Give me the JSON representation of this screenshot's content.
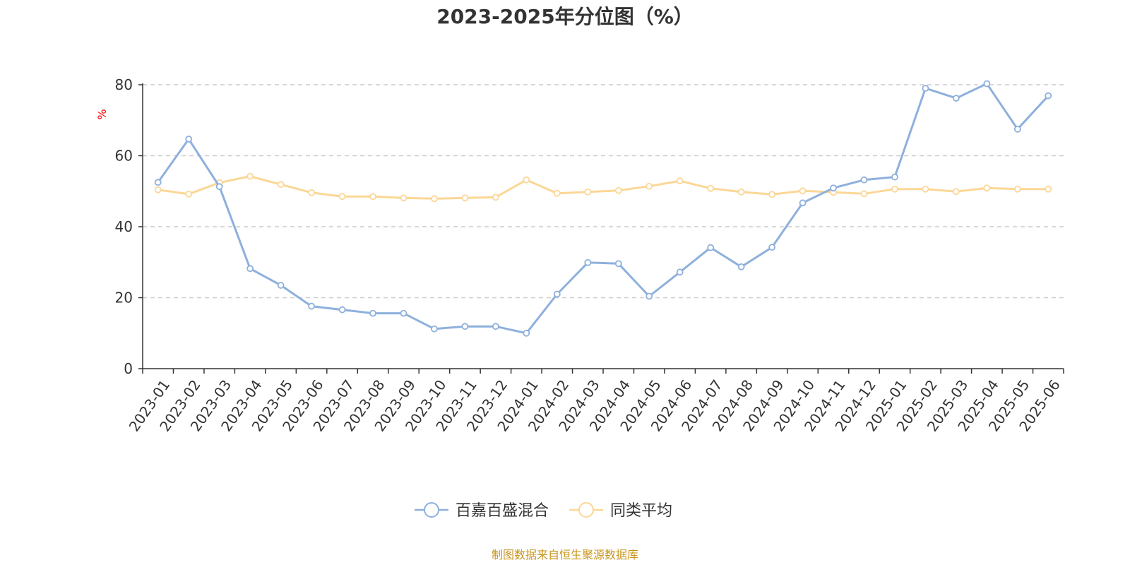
{
  "chart_data": {
    "type": "line",
    "title": "2023-2025年分位图（%）",
    "ylabel": "%",
    "ylim": [
      0,
      80
    ],
    "yticks": [
      0,
      20,
      40,
      60,
      80
    ],
    "grid": "horizontal-dashed",
    "legend_placement": "bottom-center",
    "categories": [
      "2023-01",
      "2023-02",
      "2023-03",
      "2023-04",
      "2023-05",
      "2023-06",
      "2023-07",
      "2023-08",
      "2023-09",
      "2023-10",
      "2023-11",
      "2023-12",
      "2024-01",
      "2024-02",
      "2024-03",
      "2024-04",
      "2024-05",
      "2024-06",
      "2024-07",
      "2024-08",
      "2024-09",
      "2024-10",
      "2024-11",
      "2024-12",
      "2025-01",
      "2025-02",
      "2025-03",
      "2025-04",
      "2025-05",
      "2025-06"
    ],
    "series": [
      {
        "name": "百嘉百盛混合",
        "color": "#8eb0dc",
        "values": [
          52.5,
          64.7,
          51.3,
          28.2,
          23.5,
          17.6,
          16.6,
          15.6,
          15.6,
          11.2,
          11.9,
          11.9,
          10.0,
          21.0,
          29.9,
          29.6,
          20.4,
          27.2,
          34.1,
          28.7,
          34.2,
          46.7,
          50.9,
          53.2,
          54.0,
          79.0,
          76.2,
          80.3,
          67.5,
          76.9
        ]
      },
      {
        "name": "同类平均",
        "color": "#fbd796",
        "values": [
          50.4,
          49.2,
          52.4,
          54.2,
          51.9,
          49.6,
          48.5,
          48.5,
          48.1,
          47.9,
          48.1,
          48.3,
          53.2,
          49.4,
          49.8,
          50.2,
          51.4,
          52.9,
          50.8,
          49.8,
          49.1,
          50.1,
          49.7,
          49.3,
          50.6,
          50.6,
          49.9,
          50.9,
          50.6,
          50.6
        ]
      }
    ],
    "source_note": "制图数据来自恒生聚源数据库",
    "source_color": "#c8961e",
    "unit_color": "#ff0000"
  }
}
